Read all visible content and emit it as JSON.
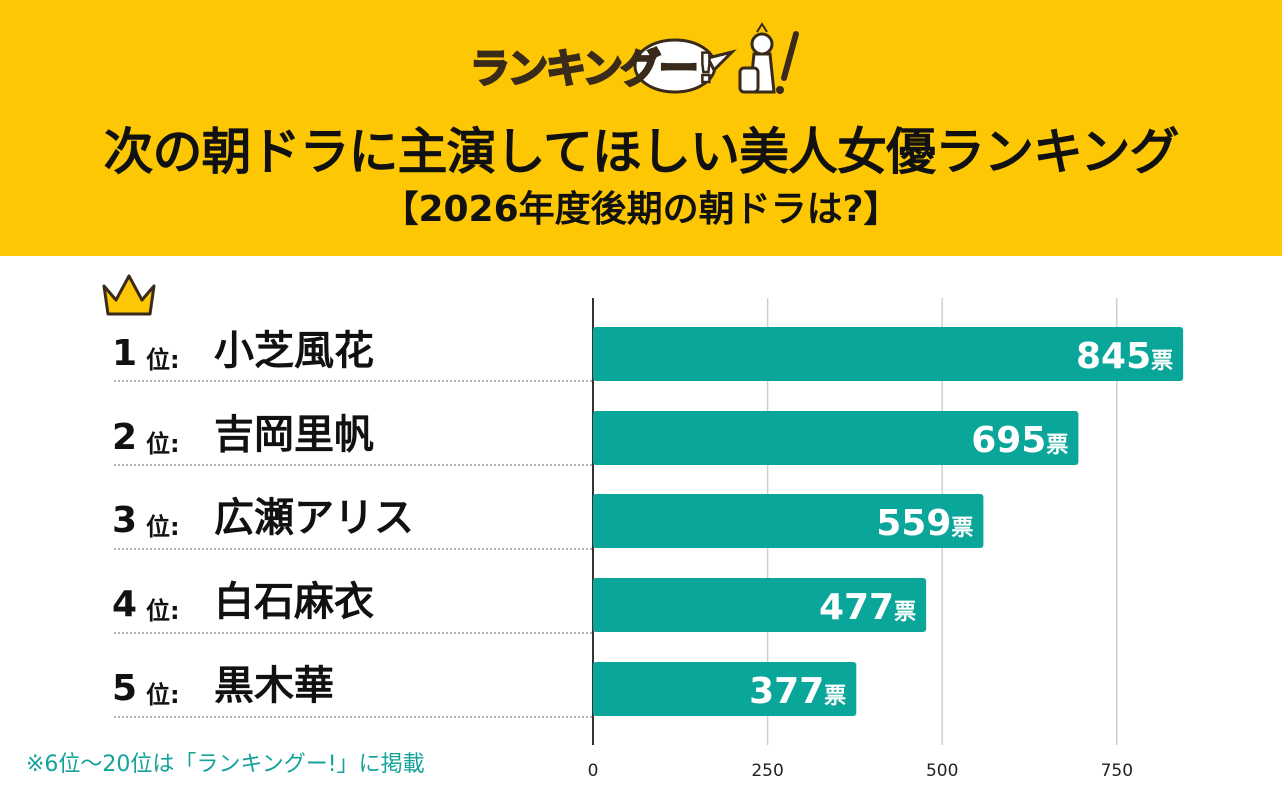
{
  "header": {
    "logo_text": "ランキングー!",
    "title": "次の朝ドラに主演してほしい美人女優ランキング",
    "subtitle": "【2026年度後期の朝ドラは?】",
    "background": "#fdc803"
  },
  "rows": [
    {
      "rank": "1",
      "suffix": "位:",
      "name": "小芝風花"
    },
    {
      "rank": "2",
      "suffix": "位:",
      "name": "吉岡里帆"
    },
    {
      "rank": "3",
      "suffix": "位:",
      "name": "広瀬アリス"
    },
    {
      "rank": "4",
      "suffix": "位:",
      "name": "白石麻衣"
    },
    {
      "rank": "5",
      "suffix": "位:",
      "name": "黒木華"
    }
  ],
  "chart_data": {
    "type": "bar",
    "orientation": "horizontal",
    "categories": [
      "小芝風花",
      "吉岡里帆",
      "広瀬アリス",
      "白石麻衣",
      "黒木華"
    ],
    "values": [
      845,
      695,
      559,
      477,
      377
    ],
    "value_unit": "票",
    "xlim": [
      0,
      840
    ],
    "xticks": [
      0,
      250,
      500,
      750
    ],
    "grid": true,
    "bar_color": "#0aa699"
  },
  "footnote": "※6位〜20位は「ランキングー!」に掲載"
}
